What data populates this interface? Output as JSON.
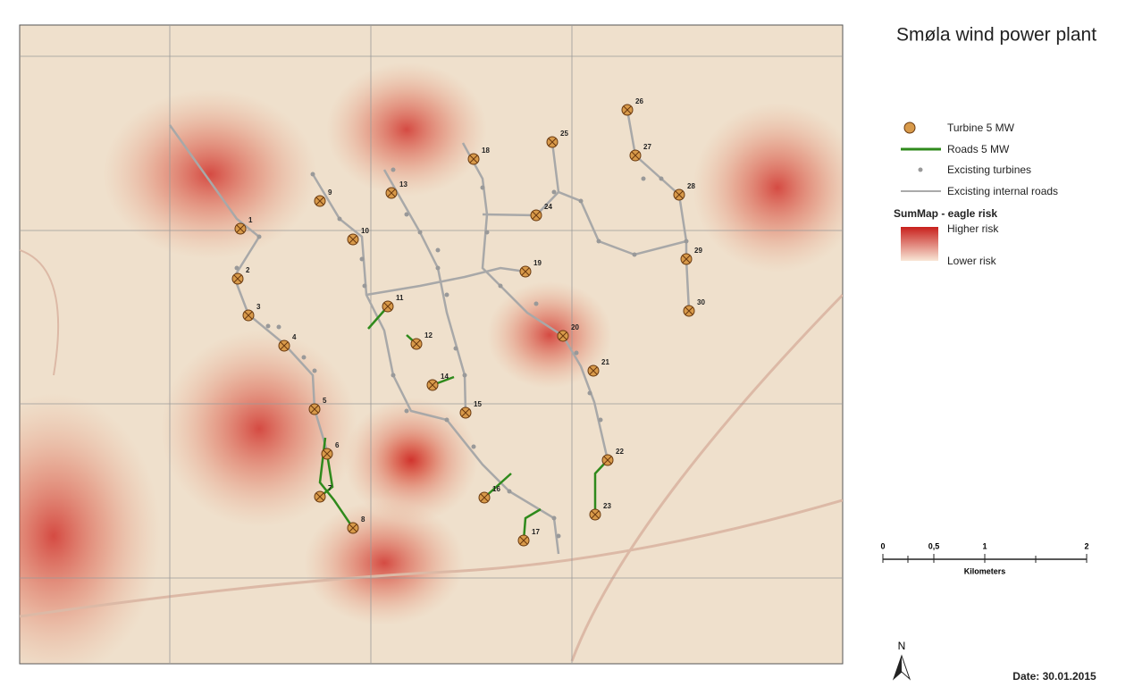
{
  "map": {
    "title": "Smøla wind power plant",
    "turbines": [
      "1",
      "2",
      "3",
      "4",
      "5",
      "6",
      "7",
      "8",
      "9",
      "10",
      "11",
      "12",
      "13",
      "14",
      "15",
      "16",
      "17",
      "18",
      "19",
      "20",
      "21",
      "22",
      "23",
      "24",
      "25",
      "26",
      "27",
      "28",
      "29",
      "30"
    ],
    "legend": {
      "turbine": "Turbine 5 MW",
      "roads": "Roads 5 MW",
      "existing_turbines": "Excisting turbines",
      "existing_roads": "Excisting internal roads",
      "risk_title": "SumMap - eagle risk",
      "higher": "Higher risk",
      "lower": "Lower risk"
    },
    "scale": {
      "ticks": [
        "0",
        "0,5",
        "1",
        "2"
      ],
      "unit": "Kilometers"
    },
    "north": "N",
    "date": "Date: 30.01.2015"
  }
}
